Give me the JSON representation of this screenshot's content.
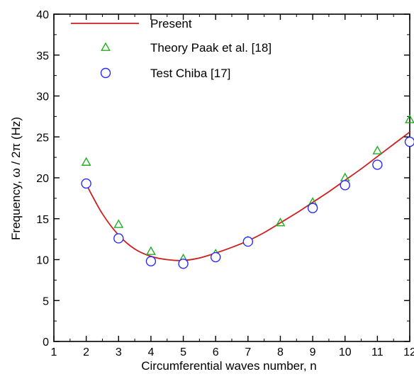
{
  "chart_data": {
    "type": "scatter",
    "xlabel": "Circumferential waves number, n",
    "ylabel": "Frequency, ω / 2π (Hz)",
    "xlim": [
      1,
      12
    ],
    "ylim": [
      0,
      40
    ],
    "xticks": [
      "1",
      "2",
      "3",
      "4",
      "5",
      "6",
      "7",
      "8",
      "9",
      "10",
      "11",
      "12"
    ],
    "yticks": [
      "0",
      "5",
      "10",
      "15",
      "20",
      "25",
      "30",
      "35",
      "40"
    ],
    "grid": false,
    "legend_position": "top-left",
    "series": [
      {
        "name": "Present",
        "style": "line",
        "color": "#cc1f1f",
        "x": [
          2,
          2.5,
          3,
          3.5,
          4,
          4.5,
          5,
          5.5,
          6,
          6.5,
          7,
          7.5,
          8,
          8.5,
          9,
          9.5,
          10,
          10.5,
          11,
          11.5,
          12
        ],
        "y": [
          19.2,
          15.6,
          13.0,
          11.3,
          10.4,
          10.0,
          9.9,
          10.2,
          10.8,
          11.5,
          12.3,
          13.3,
          14.5,
          15.7,
          17.0,
          18.3,
          19.7,
          21.1,
          22.6,
          24.1,
          25.6
        ]
      },
      {
        "name": "Theory Paak et al. [18]",
        "style": "triangle",
        "color": "#1fae1f",
        "x": [
          2,
          3,
          4,
          5,
          6,
          7,
          8,
          9,
          10,
          11,
          12
        ],
        "y": [
          21.9,
          14.3,
          11.0,
          10.1,
          10.7,
          12.3,
          14.5,
          17.0,
          20.0,
          23.3,
          27.1
        ]
      },
      {
        "name": "Test Chiba [17]",
        "style": "circle",
        "color": "#2a2aff",
        "x": [
          2,
          3,
          4,
          5,
          6,
          7,
          9,
          10,
          11,
          12
        ],
        "y": [
          19.3,
          12.6,
          9.8,
          9.5,
          10.3,
          12.2,
          16.3,
          19.1,
          21.6,
          24.4
        ]
      }
    ]
  }
}
